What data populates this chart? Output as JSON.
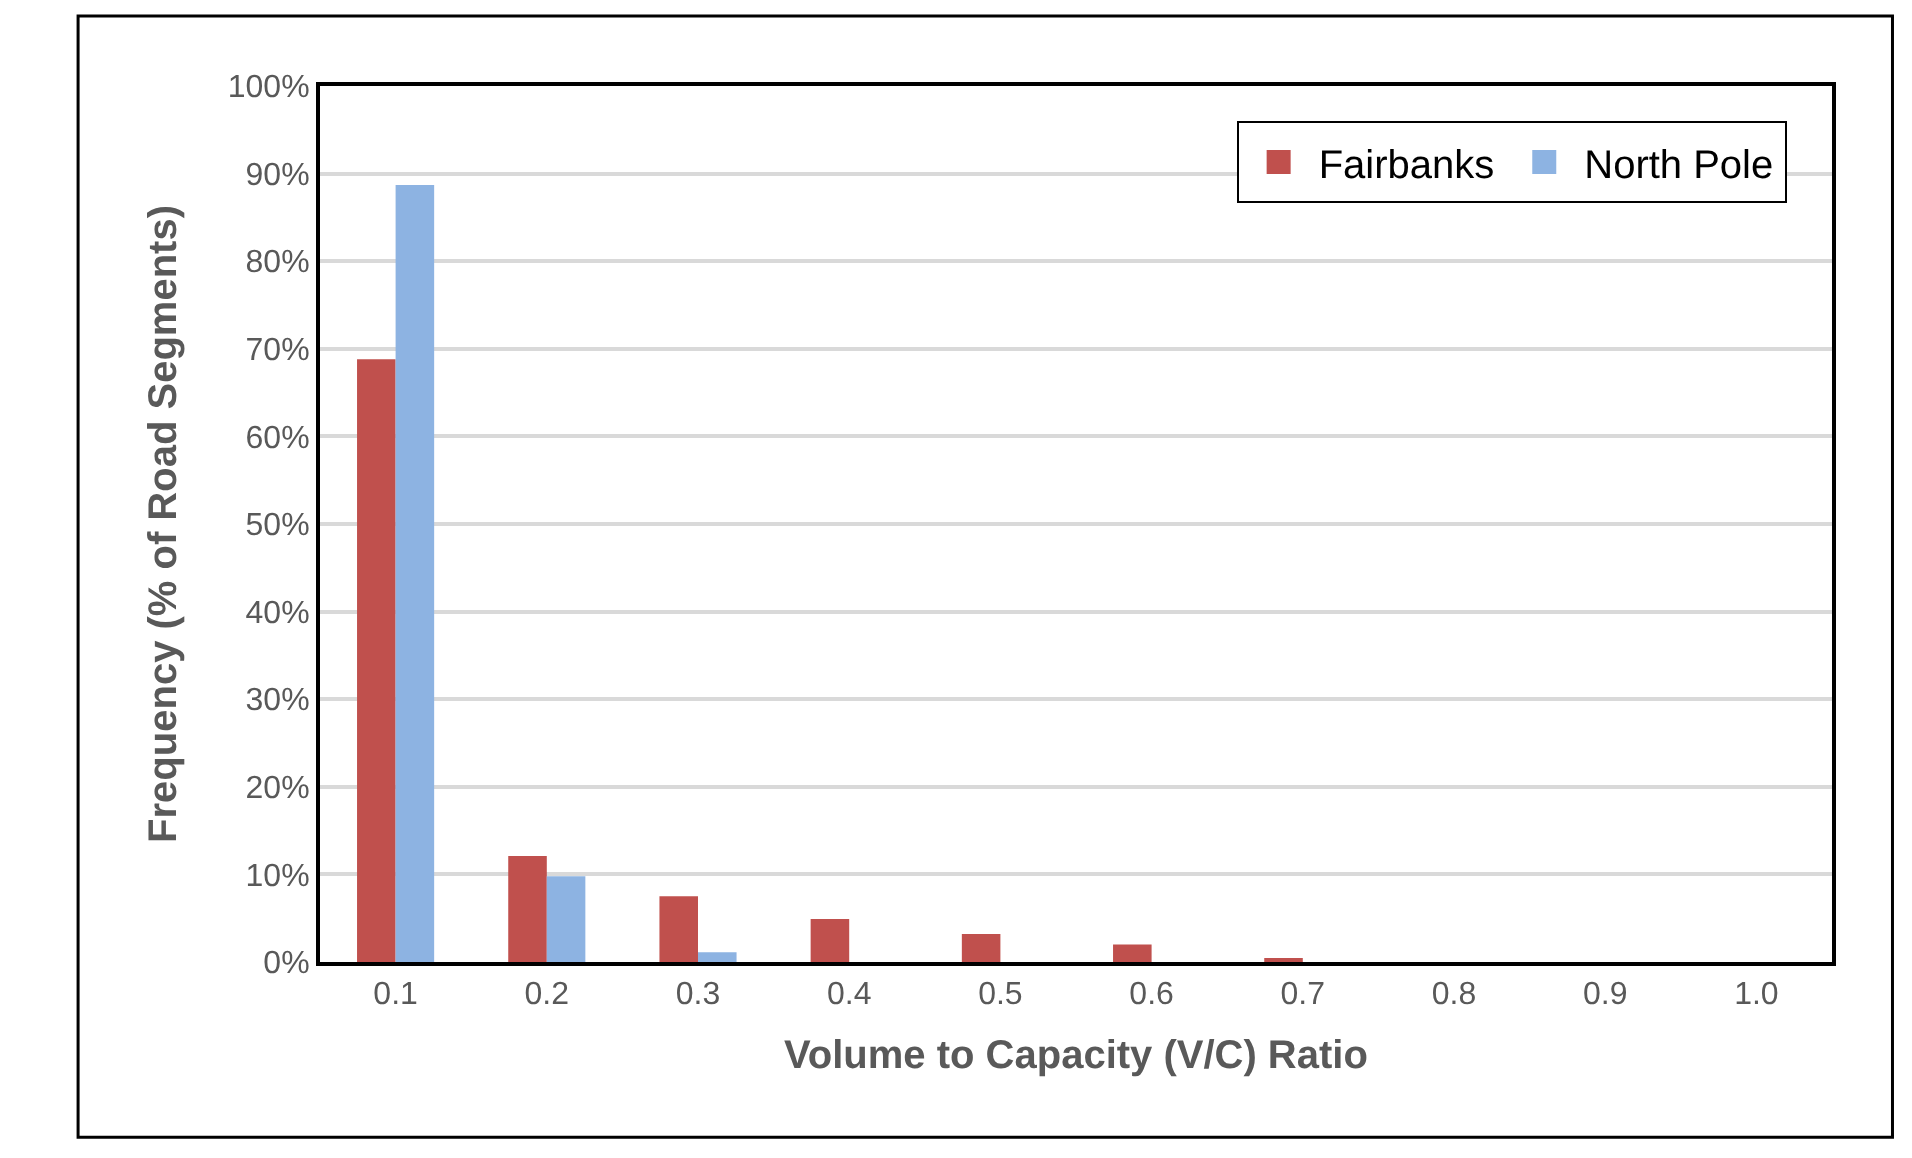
{
  "chart_data": {
    "type": "bar",
    "xlabel": "Volume to Capacity (V/C) Ratio",
    "ylabel": "Frequency (% of Road Segments)",
    "categories": [
      "0.1",
      "0.2",
      "0.3",
      "0.4",
      "0.5",
      "0.6",
      "0.7",
      "0.8",
      "0.9",
      "1.0"
    ],
    "series": [
      {
        "name": "Fairbanks",
        "color": "#c0504d",
        "values": [
          68.8,
          12.1,
          7.5,
          4.9,
          3.2,
          2.0,
          0.3,
          0,
          0,
          0
        ]
      },
      {
        "name": "North Pole",
        "color": "#8db3e2",
        "values": [
          88.7,
          9.8,
          1.1,
          0,
          0,
          0,
          0,
          0,
          0,
          0
        ]
      }
    ],
    "ylim": [
      0,
      100
    ],
    "yticks": [
      {
        "value": 0,
        "label": "0%"
      },
      {
        "value": 10,
        "label": "10%"
      },
      {
        "value": 20,
        "label": "20%"
      },
      {
        "value": 30,
        "label": "30%"
      },
      {
        "value": 40,
        "label": "40%"
      },
      {
        "value": 50,
        "label": "50%"
      },
      {
        "value": 60,
        "label": "60%"
      },
      {
        "value": 70,
        "label": "70%"
      },
      {
        "value": 80,
        "label": "80%"
      },
      {
        "value": 90,
        "label": "90%"
      },
      {
        "value": 100,
        "label": "100%"
      }
    ],
    "grid": "y",
    "legend": "top right"
  }
}
